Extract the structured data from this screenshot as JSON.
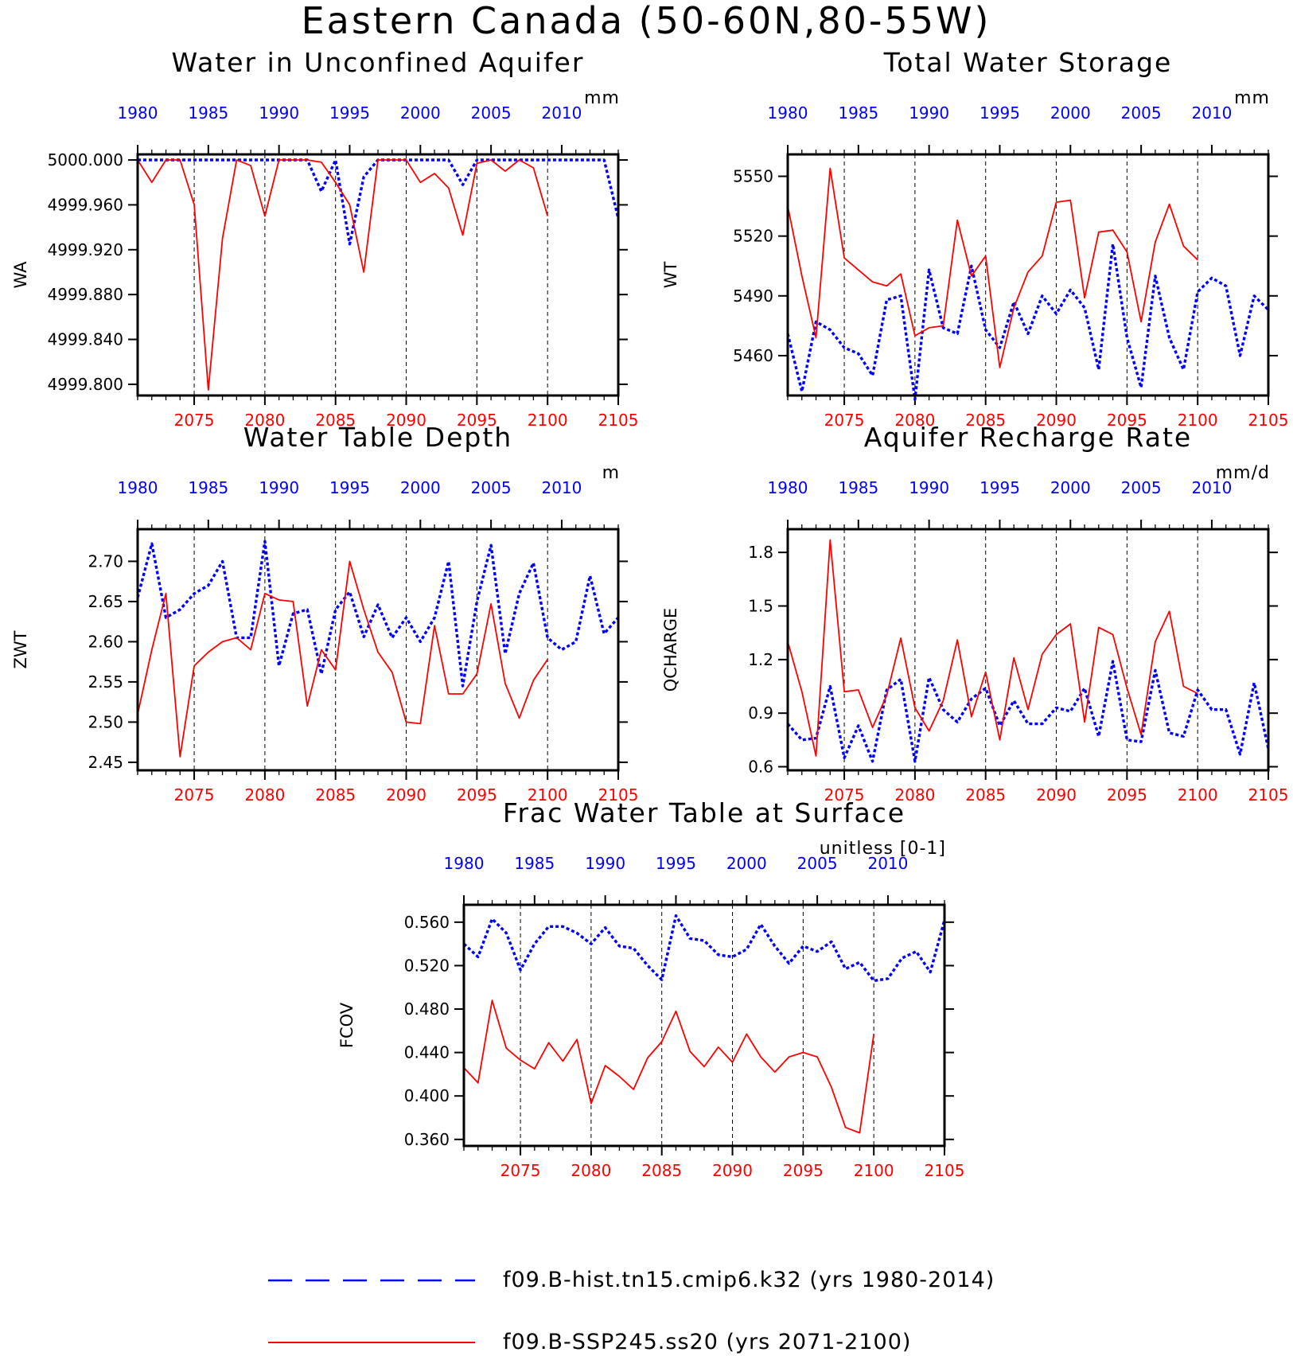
{
  "figure_title": "Eastern Canada (50-60N,80-55W)",
  "colors": {
    "hist": "#0000ff",
    "future": "#ff0000",
    "axis": "#000000"
  },
  "legend": [
    {
      "label": "f09.B-hist.tn15.cmip6.k32 (yrs 1980-2014)",
      "style": "dashed",
      "color": "#0000ff"
    },
    {
      "label": "f09.B-SSP245.ss20 (yrs 2071-2100)",
      "style": "solid",
      "color": "#ff0000"
    }
  ],
  "top_axis": {
    "color": "#0000ff",
    "range": [
      1980,
      2014
    ],
    "ticks": [
      1980,
      1985,
      1990,
      1995,
      2000,
      2005,
      2010
    ]
  },
  "bottom_axis": {
    "color": "#ff0000",
    "range": [
      2071,
      2105
    ],
    "ticks": [
      2075,
      2080,
      2085,
      2090,
      2095,
      2100,
      2105
    ]
  },
  "chart_data": [
    {
      "type": "line",
      "title": "Water in Unconfined Aquifer",
      "ylabel": "WA",
      "units": "mm",
      "ylim": [
        4999.79,
        5000.005
      ],
      "yticks": [
        "5000.000",
        "4999.960",
        "4999.920",
        "4999.880",
        "4999.840",
        "4999.800"
      ],
      "series": [
        {
          "name": "f09.B-hist.tn15.cmip6.k32 (yrs 1980-2014)",
          "x_start": 1980,
          "values": [
            5000.0,
            5000.0,
            5000.0,
            5000.0,
            5000.0,
            5000.0,
            5000.0,
            5000.0,
            5000.0,
            5000.0,
            5000.0,
            5000.0,
            5000.0,
            4999.972,
            5000.0,
            4999.925,
            4999.985,
            5000.0,
            5000.0,
            5000.0,
            5000.0,
            5000.0,
            5000.0,
            4999.978,
            5000.0,
            5000.0,
            5000.0,
            5000.0,
            5000.0,
            5000.0,
            5000.0,
            5000.0,
            5000.0,
            5000.0,
            4999.948
          ]
        },
        {
          "name": "f09.B-SSP245.ss20 (yrs 2071-2100)",
          "x_start": 2071,
          "values": [
            5000.0,
            4999.98,
            5000.0,
            5000.0,
            4999.96,
            4999.795,
            4999.93,
            5000.0,
            4999.995,
            4999.95,
            5000.0,
            5000.0,
            5000.0,
            4999.998,
            4999.98,
            4999.96,
            4999.9,
            5000.0,
            5000.0,
            5000.0,
            4999.98,
            4999.988,
            4999.975,
            4999.933,
            4999.997,
            5000.0,
            4999.99,
            5000.0,
            4999.993,
            4999.95
          ]
        }
      ]
    },
    {
      "type": "line",
      "title": "Total Water Storage",
      "ylabel": "WT",
      "units": "mm",
      "ylim": [
        5440,
        5561
      ],
      "yticks": [
        "5550",
        "5520",
        "5490",
        "5460"
      ],
      "series": [
        {
          "name": "f09.B-hist.tn15.cmip6.k32 (yrs 1980-2014)",
          "x_start": 1980,
          "values": [
            5471,
            5442,
            5477,
            5473,
            5464,
            5461,
            5450,
            5488,
            5490,
            5438,
            5503,
            5474,
            5471,
            5505,
            5473,
            5464,
            5487,
            5471,
            5490,
            5481,
            5493,
            5484,
            5453,
            5516,
            5469,
            5444,
            5500,
            5469,
            5453,
            5492,
            5499,
            5495,
            5460,
            5490,
            5483
          ]
        },
        {
          "name": "f09.B-SSP245.ss20 (yrs 2071-2100)",
          "x_start": 2071,
          "values": [
            5535,
            5500,
            5469,
            5554,
            5509,
            5503,
            5497,
            5495,
            5501,
            5470,
            5474,
            5475,
            5528,
            5500,
            5510,
            5454,
            5484,
            5502,
            5510,
            5537,
            5538,
            5489,
            5522,
            5523,
            5512,
            5477,
            5517,
            5536,
            5515,
            5508
          ]
        }
      ]
    },
    {
      "type": "line",
      "title": "Water Table Depth",
      "ylabel": "ZWT",
      "units": "m",
      "ylim": [
        2.44,
        2.74
      ],
      "yticks": [
        "2.70",
        "2.65",
        "2.60",
        "2.55",
        "2.50",
        "2.45"
      ],
      "series": [
        {
          "name": "f09.B-hist.tn15.cmip6.k32 (yrs 1980-2014)",
          "x_start": 1980,
          "values": [
            2.655,
            2.722,
            2.63,
            2.64,
            2.66,
            2.67,
            2.7,
            2.605,
            2.605,
            2.725,
            2.57,
            2.635,
            2.64,
            2.56,
            2.64,
            2.662,
            2.606,
            2.646,
            2.605,
            2.63,
            2.6,
            2.63,
            2.7,
            2.545,
            2.65,
            2.72,
            2.585,
            2.66,
            2.698,
            2.605,
            2.59,
            2.6,
            2.682,
            2.61,
            2.63
          ]
        },
        {
          "name": "f09.B-SSP245.ss20 (yrs 2071-2100)",
          "x_start": 2071,
          "values": [
            2.51,
            2.59,
            2.66,
            2.457,
            2.57,
            2.587,
            2.6,
            2.605,
            2.59,
            2.66,
            2.652,
            2.65,
            2.52,
            2.59,
            2.565,
            2.7,
            2.64,
            2.587,
            2.562,
            2.5,
            2.498,
            2.62,
            2.535,
            2.535,
            2.56,
            2.647,
            2.548,
            2.505,
            2.552,
            2.578
          ]
        }
      ]
    },
    {
      "type": "line",
      "title": "Aquifer Recharge Rate",
      "ylabel": "QCHARGE",
      "units": "mm/d",
      "ylim": [
        0.58,
        1.93
      ],
      "yticks": [
        "1.8",
        "1.5",
        "1.2",
        "0.9",
        "0.6"
      ],
      "series": [
        {
          "name": "f09.B-hist.tn15.cmip6.k32 (yrs 1980-2014)",
          "x_start": 1980,
          "values": [
            0.84,
            0.75,
            0.76,
            1.05,
            0.65,
            0.83,
            0.63,
            1.03,
            1.09,
            0.63,
            1.1,
            0.92,
            0.85,
            0.98,
            1.04,
            0.83,
            0.97,
            0.84,
            0.84,
            0.93,
            0.91,
            1.04,
            0.77,
            1.19,
            0.75,
            0.74,
            1.14,
            0.79,
            0.77,
            1.03,
            0.92,
            0.92,
            0.67,
            1.07,
            0.7
          ]
        },
        {
          "name": "f09.B-SSP245.ss20 (yrs 2071-2100)",
          "x_start": 2071,
          "values": [
            1.3,
            1.02,
            0.66,
            1.87,
            1.02,
            1.03,
            0.82,
            1.0,
            1.32,
            0.93,
            0.8,
            0.97,
            1.31,
            0.88,
            1.13,
            0.75,
            1.21,
            0.92,
            1.23,
            1.34,
            1.4,
            0.85,
            1.38,
            1.34,
            1.04,
            0.78,
            1.3,
            1.47,
            1.05,
            1.01
          ]
        }
      ]
    },
    {
      "type": "line",
      "title": "Frac Water Table at Surface",
      "ylabel": "FCOV",
      "units": "unitless [0-1]",
      "ylim": [
        0.354,
        0.576
      ],
      "yticks": [
        "0.560",
        "0.520",
        "0.480",
        "0.440",
        "0.400",
        "0.360"
      ],
      "series": [
        {
          "name": "f09.B-hist.tn15.cmip6.k32 (yrs 1980-2014)",
          "x_start": 1980,
          "values": [
            0.54,
            0.528,
            0.563,
            0.55,
            0.516,
            0.54,
            0.556,
            0.556,
            0.55,
            0.54,
            0.555,
            0.538,
            0.536,
            0.52,
            0.507,
            0.566,
            0.545,
            0.543,
            0.53,
            0.528,
            0.535,
            0.558,
            0.538,
            0.522,
            0.538,
            0.533,
            0.542,
            0.517,
            0.523,
            0.506,
            0.508,
            0.527,
            0.533,
            0.514,
            0.562
          ]
        },
        {
          "name": "f09.B-SSP245.ss20 (yrs 2071-2100)",
          "x_start": 2071,
          "values": [
            0.426,
            0.412,
            0.488,
            0.444,
            0.433,
            0.425,
            0.449,
            0.432,
            0.452,
            0.393,
            0.428,
            0.418,
            0.406,
            0.435,
            0.45,
            0.478,
            0.441,
            0.427,
            0.445,
            0.431,
            0.457,
            0.436,
            0.422,
            0.436,
            0.44,
            0.436,
            0.408,
            0.371,
            0.366,
            0.457
          ]
        }
      ]
    }
  ]
}
